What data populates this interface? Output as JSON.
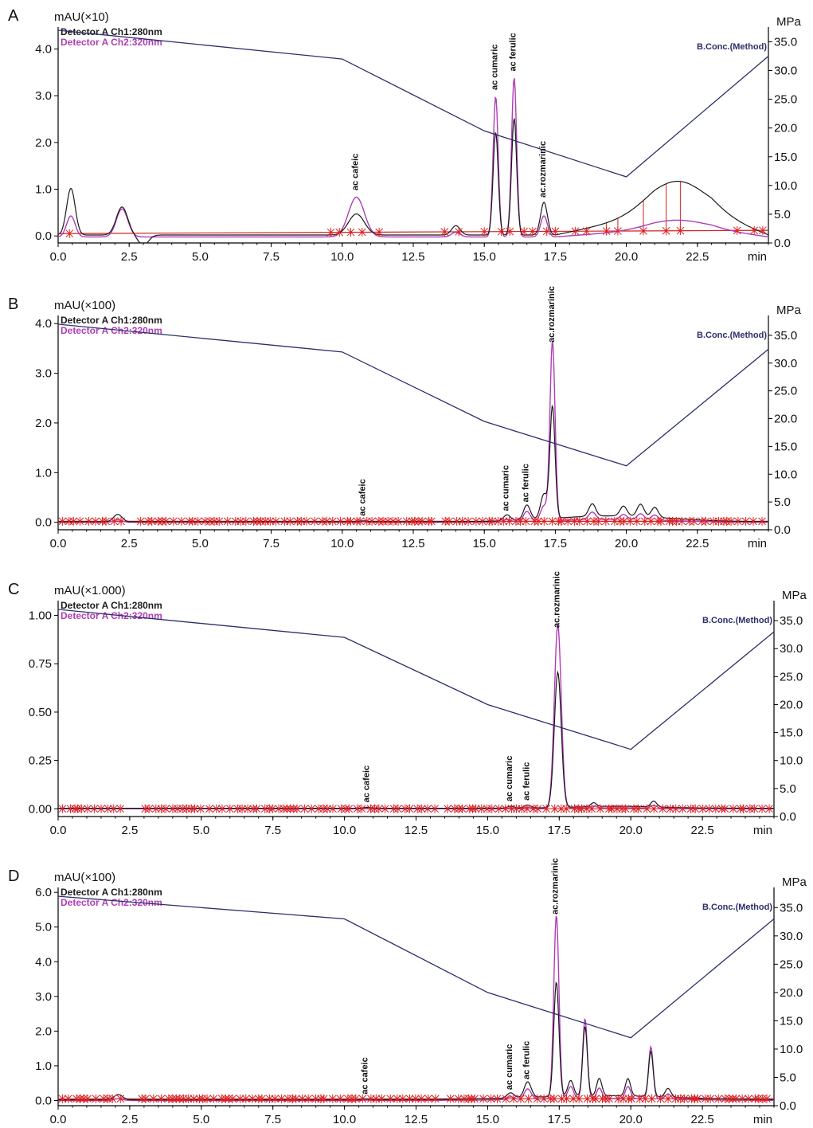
{
  "colors": {
    "ch1": "#1a1a1a",
    "ch2": "#b03cb8",
    "conc": "#2c2f6b",
    "marker": "#e02020",
    "baseline": "#d62020"
  },
  "chart_data": [
    {
      "type": "line",
      "panel": "A",
      "left_unit": "mAU(×10)",
      "right_unit": "MPa",
      "x_unit": "min",
      "xlim": [
        0,
        25
      ],
      "ylim": [
        -0.15,
        4.4
      ],
      "y2lim": [
        0,
        37
      ],
      "x_ticks": [
        "0.0",
        "2.5",
        "5.0",
        "7.5",
        "10.0",
        "12.5",
        "15.0",
        "17.5",
        "20.0",
        "22.5"
      ],
      "y_ticks": [
        "0.0",
        "1.0",
        "2.0",
        "3.0",
        "4.0"
      ],
      "y2_ticks": [
        "0.0",
        "5.0",
        "10.0",
        "15.0",
        "20.0",
        "25.0",
        "30.0",
        "35.0"
      ],
      "legend": [
        "Detector A Ch1:280nm",
        "Detector A Ch2:320nm"
      ],
      "conc_label": "B.Conc.(Method)",
      "conc_curve": {
        "x": [
          0,
          10,
          15,
          20,
          25
        ],
        "y": [
          37,
          32,
          19.5,
          11.5,
          32.5
        ]
      },
      "baseline": {
        "x": [
          0,
          25
        ],
        "y": [
          0.05,
          0.12
        ]
      },
      "peaks": [
        {
          "name": "ac cafeic",
          "x": 10.5,
          "ch1": 0.45,
          "ch2": 0.85
        },
        {
          "name": "ac cumaric",
          "x": 15.4,
          "ch1": 2.2,
          "ch2": 3.0
        },
        {
          "name": "ac ferulic",
          "x": 16.05,
          "ch1": 2.5,
          "ch2": 3.4
        },
        {
          "name": "ac.rozmarinic",
          "x": 17.1,
          "ch1": 0.7,
          "ch2": 0.45
        }
      ],
      "extra_peaks": [
        {
          "x": 0.45,
          "ch1": 1.0,
          "ch2": 0.45,
          "w": 0.15
        },
        {
          "x": 2.25,
          "ch1": 0.6,
          "ch2": 0.6,
          "w": 0.2
        },
        {
          "x": 14.0,
          "ch1": 0.2,
          "ch2": 0.1,
          "w": 0.15
        }
      ],
      "broad_bump": {
        "x": 21.8,
        "ch1": 0.7,
        "ch2": 0.2,
        "w": 1.0
      },
      "tail_rise": {
        "start": 17.5,
        "end": 21.0,
        "amount": 0.45
      },
      "ch1_base": 0.02,
      "ch2_base": -0.02,
      "marker_xs": [
        0.4,
        9.6,
        9.9,
        10.3,
        10.7,
        11.3,
        13.6,
        14.1,
        15.0,
        15.6,
        15.9,
        16.4,
        16.7,
        17.2,
        17.5,
        18.2,
        18.6,
        19.3,
        19.7,
        20.6,
        21.4,
        21.9,
        23.9,
        24.5,
        24.8
      ],
      "drop_lines": [
        18.2,
        18.6,
        19.3,
        19.7,
        20.6,
        21.4,
        21.9
      ]
    },
    {
      "type": "line",
      "panel": "B",
      "left_unit": "mAU(×100)",
      "right_unit": "MPa",
      "x_unit": "min",
      "xlim": [
        0,
        25
      ],
      "ylim": [
        -0.15,
        4.1
      ],
      "y2lim": [
        0,
        38
      ],
      "x_ticks": [
        "0.0",
        "2.5",
        "5.0",
        "7.5",
        "10.0",
        "12.5",
        "15.0",
        "17.5",
        "20.0",
        "22.5"
      ],
      "y_ticks": [
        "0.0",
        "1.0",
        "2.0",
        "3.0",
        "4.0"
      ],
      "y2_ticks": [
        "0.0",
        "5.0",
        "10.0",
        "15.0",
        "20.0",
        "25.0",
        "30.0",
        "35.0"
      ],
      "legend": [
        "Detector A Ch1:280nm",
        "Detector A Ch2:320nm"
      ],
      "conc_label": "B.Conc.(Method)",
      "conc_curve": {
        "x": [
          0,
          10,
          15,
          20,
          25
        ],
        "y": [
          37,
          32,
          19.5,
          11.5,
          32.5
        ]
      },
      "baseline": {
        "x": [
          0,
          25
        ],
        "y": [
          0.02,
          0.02
        ]
      },
      "peaks": [
        {
          "name": "ac cafeic",
          "x": 10.75,
          "ch1": 0.02,
          "ch2": 0.01
        },
        {
          "name": "ac cumaric",
          "x": 15.8,
          "ch1": 0.12,
          "ch2": 0.05
        },
        {
          "name": "ac ferulic",
          "x": 16.5,
          "ch1": 0.3,
          "ch2": 0.2
        },
        {
          "name": "ac.rozmarinic",
          "x": 17.4,
          "ch1": 2.25,
          "ch2": 3.6
        }
      ],
      "extra_peaks": [
        {
          "x": 2.1,
          "ch1": 0.15,
          "ch2": 0.05,
          "w": 0.15
        },
        {
          "x": 17.1,
          "ch1": 0.5,
          "ch2": 0.3,
          "w": 0.12
        },
        {
          "x": 18.8,
          "ch1": 0.25,
          "ch2": 0.15,
          "w": 0.12
        },
        {
          "x": 19.9,
          "ch1": 0.2,
          "ch2": 0.1,
          "w": 0.12
        },
        {
          "x": 20.5,
          "ch1": 0.25,
          "ch2": 0.12,
          "w": 0.12
        },
        {
          "x": 21.0,
          "ch1": 0.2,
          "ch2": 0.1,
          "w": 0.12
        }
      ],
      "broad_bump": {
        "x": 19.5,
        "ch1": 0.12,
        "ch2": 0.06,
        "w": 2.0
      },
      "tail_rise": {
        "start": 17.8,
        "end": 22.0,
        "amount": 0.0
      },
      "ch1_base": 0.01,
      "ch2_base": 0.0,
      "marker_density": "dense",
      "drop_lines": []
    },
    {
      "type": "line",
      "panel": "C",
      "left_unit": "mAU(×1.000)",
      "right_unit": "MPa",
      "x_unit": "min",
      "xlim": [
        0,
        25
      ],
      "ylim": [
        -0.04,
        1.06
      ],
      "y2lim": [
        0,
        38
      ],
      "x_ticks": [
        "0.0",
        "2.5",
        "5.0",
        "7.5",
        "10.0",
        "12.5",
        "15.0",
        "17.5",
        "20.0",
        "22.5"
      ],
      "y_ticks": [
        "0.00",
        "0.25",
        "0.50",
        "0.75",
        "1.00"
      ],
      "y2_ticks": [
        "0.0",
        "5.0",
        "10.0",
        "15.0",
        "20.0",
        "25.0",
        "30.0",
        "35.0"
      ],
      "legend": [
        "Detector A Ch1:280nm",
        "Detector A Ch2:320nm"
      ],
      "conc_label": "B.Conc.(Method)",
      "conc_curve": {
        "x": [
          0,
          10,
          15,
          20,
          25
        ],
        "y": [
          37,
          32,
          20,
          12,
          33
        ]
      },
      "baseline": {
        "x": [
          0,
          25
        ],
        "y": [
          0.0,
          0.0
        ]
      },
      "peaks": [
        {
          "name": "ac cafeic",
          "x": 10.8,
          "ch1": 0.005,
          "ch2": 0.003
        },
        {
          "name": "ac cumaric",
          "x": 15.8,
          "ch1": 0.01,
          "ch2": 0.005
        },
        {
          "name": "ac ferulic",
          "x": 16.4,
          "ch1": 0.015,
          "ch2": 0.008
        },
        {
          "name": "ac.rozmarinic",
          "x": 17.45,
          "ch1": 0.7,
          "ch2": 0.95
        }
      ],
      "extra_peaks": [
        {
          "x": 18.7,
          "ch1": 0.02,
          "ch2": 0.01,
          "w": 0.1
        },
        {
          "x": 20.8,
          "ch1": 0.03,
          "ch2": 0.015,
          "w": 0.1
        }
      ],
      "broad_bump": {
        "x": 19.5,
        "ch1": 0.01,
        "ch2": 0.005,
        "w": 1.5
      },
      "tail_rise": {
        "start": 17.8,
        "end": 22.0,
        "amount": 0.0
      },
      "ch1_base": 0.003,
      "ch2_base": 0.0,
      "marker_density": "dense",
      "drop_lines": []
    },
    {
      "type": "line",
      "panel": "D",
      "left_unit": "mAU(×100)",
      "right_unit": "MPa",
      "x_unit": "min",
      "xlim": [
        0,
        25
      ],
      "ylim": [
        -0.15,
        6.05
      ],
      "y2lim": [
        0,
        38
      ],
      "x_ticks": [
        "0.0",
        "2.5",
        "5.0",
        "7.5",
        "10.0",
        "12.5",
        "15.0",
        "17.5",
        "20.0",
        "22.5"
      ],
      "y_ticks": [
        "0.0",
        "1.0",
        "2.0",
        "3.0",
        "4.0",
        "5.0",
        "6.0"
      ],
      "y2_ticks": [
        "0.0",
        "5.0",
        "10.0",
        "15.0",
        "20.0",
        "25.0",
        "30.0",
        "35.0"
      ],
      "legend": [
        "Detector A Ch1:280nm",
        "Detector A Ch2:320nm"
      ],
      "conc_label": "B.Conc.(Method)",
      "conc_curve": {
        "x": [
          0,
          10,
          15,
          20,
          25
        ],
        "y": [
          37,
          33,
          20,
          12,
          33
        ]
      },
      "baseline": {
        "x": [
          0,
          25
        ],
        "y": [
          0.05,
          0.05
        ]
      },
      "peaks": [
        {
          "name": "ac cafeic",
          "x": 10.75,
          "ch1": 0.02,
          "ch2": 0.01
        },
        {
          "name": "ac cumaric",
          "x": 15.8,
          "ch1": 0.15,
          "ch2": 0.08
        },
        {
          "name": "ac ferulic",
          "x": 16.4,
          "ch1": 0.45,
          "ch2": 0.3
        },
        {
          "name": "ac.rozmarinic",
          "x": 17.4,
          "ch1": 3.3,
          "ch2": 5.3
        }
      ],
      "extra_peaks": [
        {
          "x": 2.1,
          "ch1": 0.15,
          "ch2": 0.05,
          "w": 0.15
        },
        {
          "x": 17.9,
          "ch1": 0.45,
          "ch2": 0.35,
          "w": 0.1
        },
        {
          "x": 18.4,
          "ch1": 2.0,
          "ch2": 2.3,
          "w": 0.08
        },
        {
          "x": 18.9,
          "ch1": 0.5,
          "ch2": 0.3,
          "w": 0.09
        },
        {
          "x": 19.9,
          "ch1": 0.5,
          "ch2": 0.35,
          "w": 0.09
        },
        {
          "x": 20.7,
          "ch1": 1.3,
          "ch2": 1.5,
          "w": 0.08
        },
        {
          "x": 21.3,
          "ch1": 0.25,
          "ch2": 0.15,
          "w": 0.1
        }
      ],
      "broad_bump": {
        "x": 19.0,
        "ch1": 0.12,
        "ch2": 0.06,
        "w": 2.5
      },
      "tail_rise": {
        "start": 17.8,
        "end": 22.0,
        "amount": 0.0
      },
      "ch1_base": 0.02,
      "ch2_base": 0.0,
      "marker_density": "dense",
      "drop_lines": []
    }
  ]
}
